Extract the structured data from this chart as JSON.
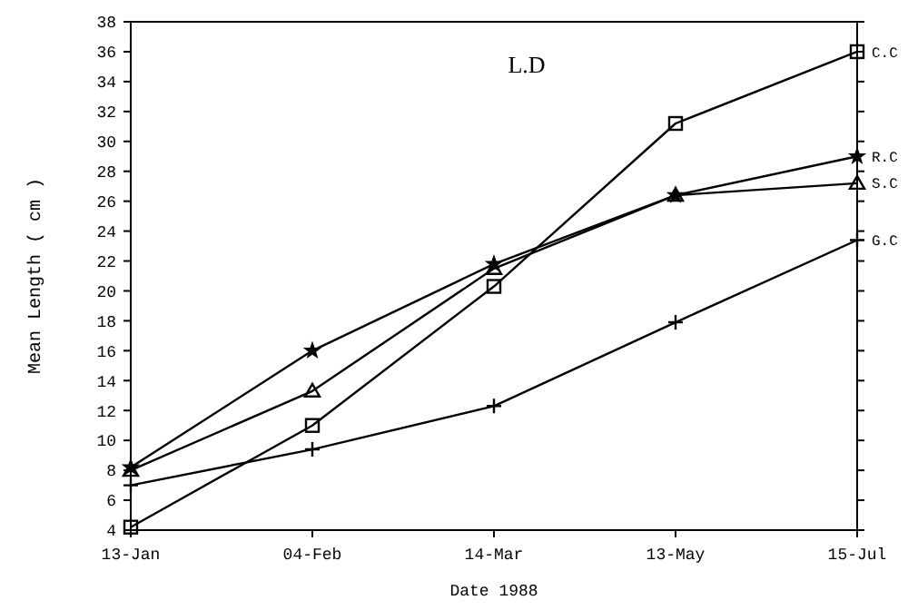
{
  "chart_data": {
    "type": "line",
    "title": "L.D",
    "xlabel": "Date 1988",
    "ylabel": "Mean Length ( cm )",
    "categories": [
      "13-Jan",
      "04-Feb",
      "14-Mar",
      "13-May",
      "15-Jul"
    ],
    "series": [
      {
        "name": "C.C",
        "color": "#000000",
        "marker": "square",
        "values": [
          4.2,
          11,
          20.3,
          31.2,
          36
        ]
      },
      {
        "name": "R.C",
        "color": "#000000",
        "marker": "star",
        "values": [
          8.2,
          16,
          21.8,
          26.4,
          29
        ]
      },
      {
        "name": "S.C",
        "color": "#000000",
        "marker": "triangle",
        "values": [
          8,
          13.3,
          21.5,
          26.4,
          27.2
        ]
      },
      {
        "name": "G.C",
        "color": "#000000",
        "marker": "cross",
        "values": [
          7,
          9.4,
          12.3,
          17.9,
          23.4
        ]
      }
    ],
    "ylim": [
      4,
      38
    ],
    "yticks": [
      4,
      6,
      8,
      10,
      12,
      14,
      16,
      18,
      20,
      22,
      24,
      26,
      28,
      30,
      32,
      34,
      36,
      38
    ],
    "grid": false,
    "legend": "right",
    "line_style": "solid"
  }
}
